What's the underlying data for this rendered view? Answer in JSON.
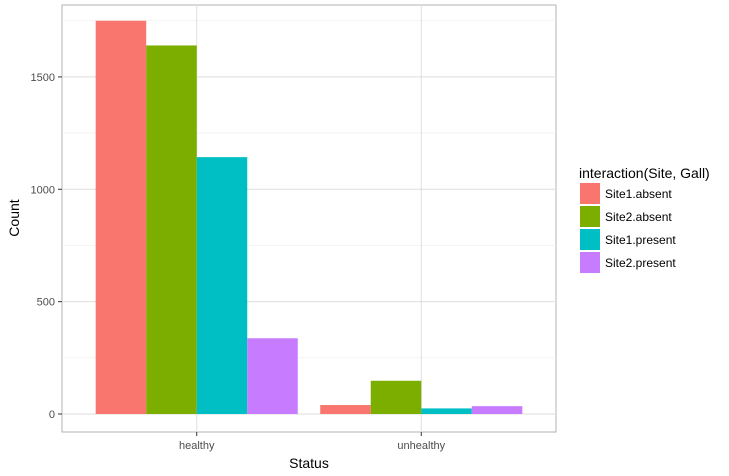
{
  "chart_data": {
    "type": "bar",
    "xlabel": "Status",
    "ylabel": "Count",
    "categories": [
      "healthy",
      "unhealthy"
    ],
    "series": [
      {
        "name": "Site1.absent",
        "color": "#F8766D",
        "values": [
          1750,
          40
        ]
      },
      {
        "name": "Site2.absent",
        "color": "#7CAE00",
        "values": [
          1640,
          148
        ]
      },
      {
        "name": "Site1.present",
        "color": "#00BFC4",
        "values": [
          1143,
          25
        ]
      },
      {
        "name": "Site2.present",
        "color": "#C77CFF",
        "values": [
          337,
          35
        ]
      }
    ],
    "ylim": [
      -80,
      1820
    ],
    "yticks": [
      0,
      500,
      1000,
      1500
    ],
    "legend": {
      "title": "interaction(Site, Gall)",
      "position": "right"
    },
    "grid": true
  }
}
